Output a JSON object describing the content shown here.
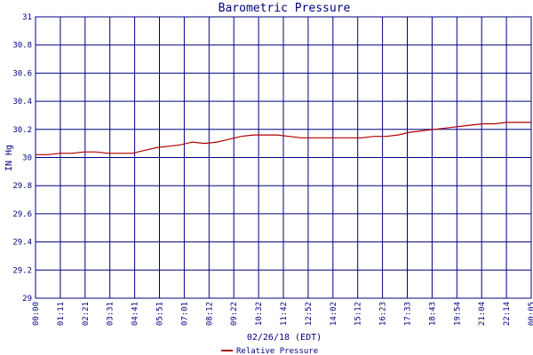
{
  "chart_data": {
    "type": "line",
    "title": "Barometric Pressure",
    "xlabel": "02/26/18 (EDT)",
    "ylabel": "IN Hg",
    "ylim": [
      29,
      31
    ],
    "yticks": [
      "29",
      "29.2",
      "29.4",
      "29.6",
      "29.8",
      "30",
      "30.2",
      "30.4",
      "30.6",
      "30.8",
      "31"
    ],
    "x_tick_labels": [
      "00:00",
      "01:11",
      "02:21",
      "03:31",
      "04:41",
      "05:51",
      "07:01",
      "08:12",
      "09:22",
      "10:32",
      "11:42",
      "12:52",
      "14:02",
      "15:12",
      "16:23",
      "17:33",
      "18:43",
      "19:54",
      "21:04",
      "22:14",
      "00:05"
    ],
    "grid": true,
    "legend_position": "bottom",
    "colors": {
      "series": "#b00000",
      "grid": "#000080",
      "text": "#000080"
    },
    "series": [
      {
        "name": "Relative Pressure",
        "x": [
          "00:00",
          "00:35",
          "01:11",
          "01:46",
          "02:21",
          "02:56",
          "03:31",
          "04:06",
          "04:41",
          "05:16",
          "05:51",
          "06:26",
          "07:01",
          "07:36",
          "08:12",
          "08:47",
          "09:22",
          "09:57",
          "10:32",
          "11:07",
          "11:42",
          "12:17",
          "12:52",
          "13:27",
          "14:02",
          "14:37",
          "15:12",
          "15:47",
          "16:23",
          "16:58",
          "17:33",
          "18:08",
          "18:43",
          "19:18",
          "19:54",
          "20:29",
          "21:04",
          "21:39",
          "22:14",
          "22:49",
          "23:59"
        ],
        "values": [
          30.02,
          30.02,
          30.03,
          30.03,
          30.04,
          30.04,
          30.03,
          30.03,
          30.03,
          30.05,
          30.07,
          30.08,
          30.09,
          30.11,
          30.1,
          30.11,
          30.13,
          30.15,
          30.16,
          30.16,
          30.16,
          30.15,
          30.14,
          30.14,
          30.14,
          30.14,
          30.14,
          30.14,
          30.15,
          30.15,
          30.16,
          30.18,
          30.19,
          30.2,
          30.21,
          30.22,
          30.23,
          30.24,
          30.24,
          30.25,
          30.25
        ]
      }
    ]
  }
}
